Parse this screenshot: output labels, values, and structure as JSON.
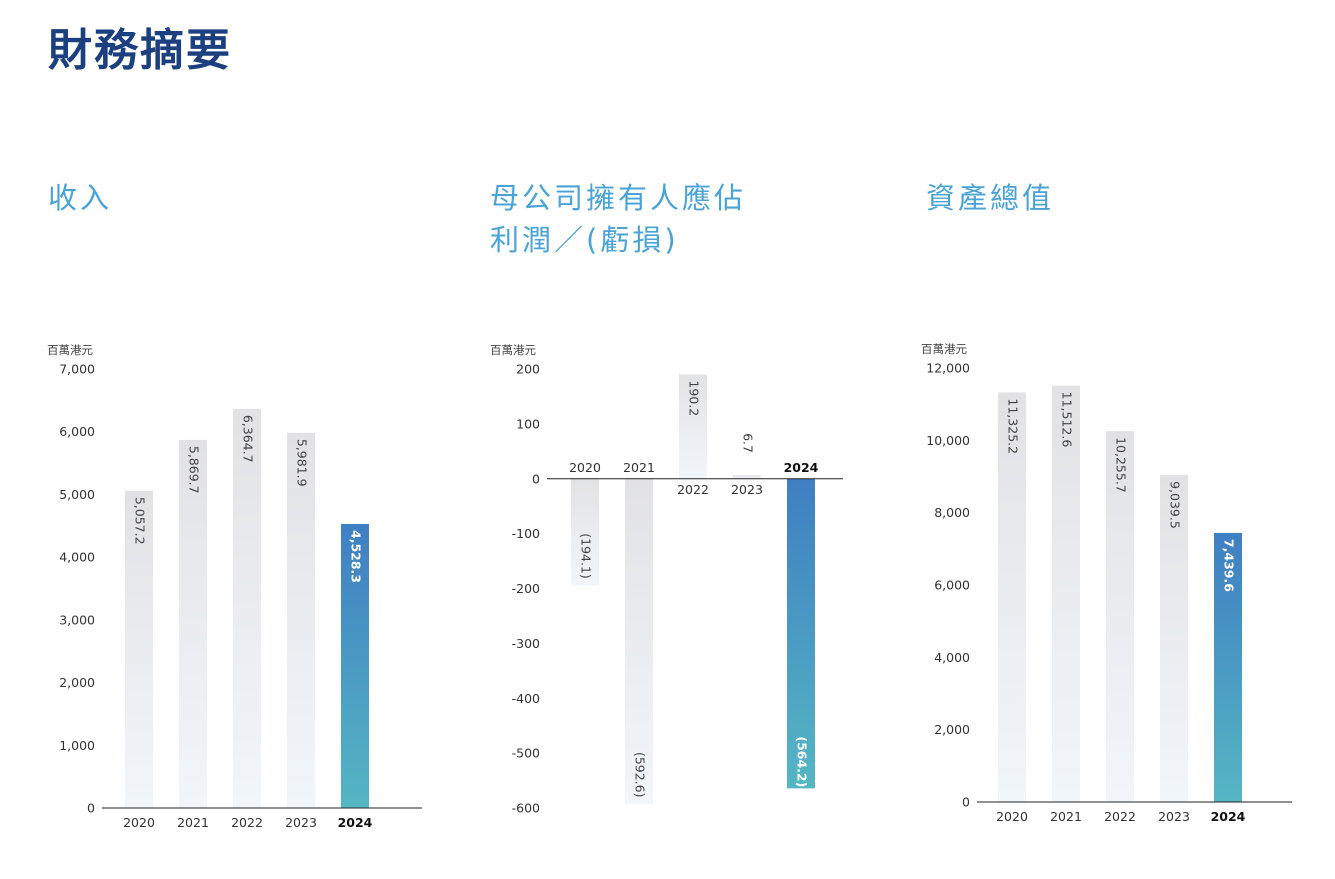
{
  "page_title": "財務摘要",
  "colors": {
    "title": "#1b3f7f",
    "chart_title": "#4aa3d6",
    "bar_gray_top": "#e2e2e4",
    "bar_gray_bottom": "#f1f6fb",
    "highlight_top": "#3f7fc3",
    "highlight_bottom": "#55b6c3"
  },
  "chart_data": [
    {
      "type": "bar",
      "title": "收入",
      "unit": "百萬港元",
      "categories": [
        "2020",
        "2021",
        "2022",
        "2023",
        "2024"
      ],
      "values": [
        5057.2,
        5869.7,
        6364.7,
        5981.9,
        4528.3
      ],
      "value_labels": [
        "5,057.2",
        "5,869.7",
        "6,364.7",
        "5,981.9",
        "4,528.3"
      ],
      "highlight_category": "2024",
      "ylim": [
        0,
        7000
      ],
      "yticks": [
        0,
        1000,
        2000,
        3000,
        4000,
        5000,
        6000,
        7000
      ],
      "ytick_labels": [
        "0",
        "1,000",
        "2,000",
        "3,000",
        "4,000",
        "5,000",
        "6,000",
        "7,000"
      ],
      "grid": false
    },
    {
      "type": "bar",
      "title": "母公司擁有人應佔利潤／(虧損)",
      "title_lines": [
        "母公司擁有人應佔",
        "利潤／(虧損)"
      ],
      "unit": "百萬港元",
      "categories": [
        "2020",
        "2021",
        "2022",
        "2023",
        "2024"
      ],
      "values": [
        -194.1,
        -592.6,
        190.2,
        6.7,
        -564.2
      ],
      "value_labels": [
        "(194.1)",
        "(592.6)",
        "190.2",
        "6.7",
        "(564.2)"
      ],
      "highlight_category": "2024",
      "ylim": [
        -600,
        200
      ],
      "yticks": [
        200,
        100,
        0,
        -100,
        -200,
        -300,
        -400,
        -500,
        -600
      ],
      "ytick_labels": [
        "200",
        "100",
        "0",
        "-100",
        "-200",
        "-300",
        "-400",
        "-500",
        "-600"
      ],
      "grid": false
    },
    {
      "type": "bar",
      "title": "資產總值",
      "unit": "百萬港元",
      "categories": [
        "2020",
        "2021",
        "2022",
        "2023",
        "2024"
      ],
      "values": [
        11325.2,
        11512.6,
        10255.7,
        9039.5,
        7439.6
      ],
      "value_labels": [
        "11,325.2",
        "11,512.6",
        "10,255.7",
        "9,039.5",
        "7,439.6"
      ],
      "highlight_category": "2024",
      "ylim": [
        0,
        12000
      ],
      "yticks": [
        0,
        2000,
        4000,
        6000,
        8000,
        10000,
        12000
      ],
      "ytick_labels": [
        "0",
        "2,000",
        "4,000",
        "6,000",
        "8,000",
        "10,000",
        "12,000"
      ],
      "grid": false
    }
  ]
}
